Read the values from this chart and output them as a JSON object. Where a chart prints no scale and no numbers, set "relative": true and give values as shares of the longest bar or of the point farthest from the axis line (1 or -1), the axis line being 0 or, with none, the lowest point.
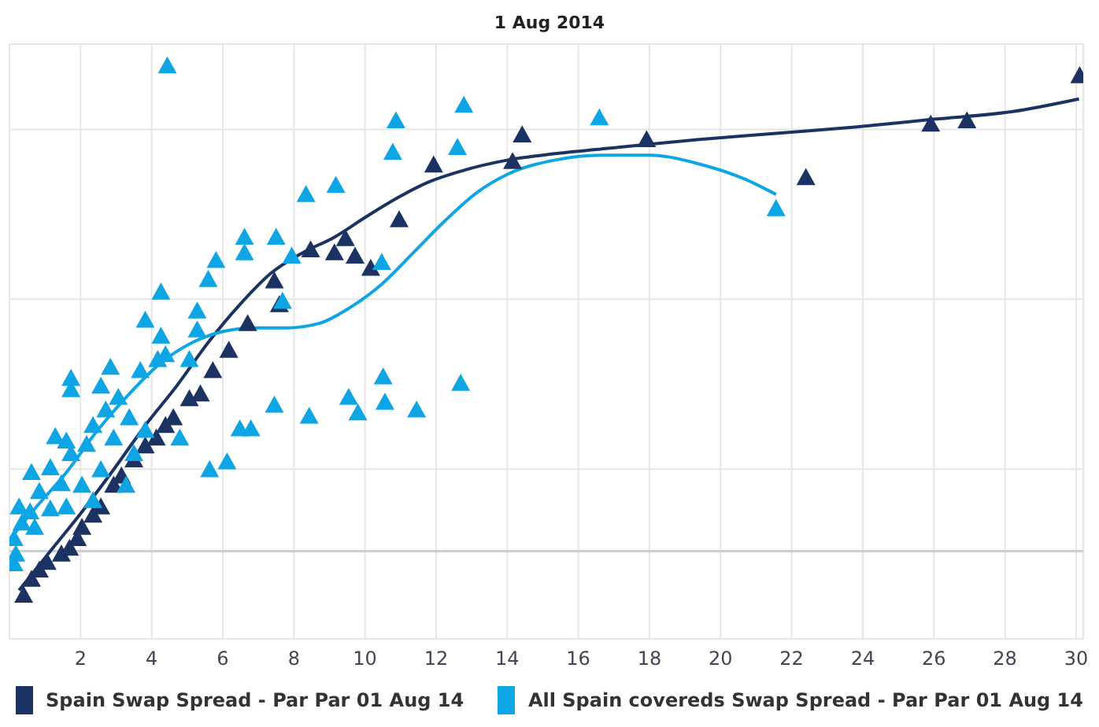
{
  "chart_data": {
    "type": "scatter",
    "title": "1 Aug 2014",
    "relative": true,
    "marker": "triangle",
    "grid": true,
    "legend": "bottom",
    "xlim": [
      0,
      30.2
    ],
    "xticks": [
      2,
      4,
      6,
      8,
      10,
      12,
      14,
      16,
      18,
      20,
      22,
      24,
      26,
      28,
      30
    ],
    "series": [
      {
        "name": "Spain Swap Spread - Par Par 01 Aug 14",
        "color": "#1b3263",
        "x": [
          0.4,
          0.62,
          0.84,
          1.06,
          1.46,
          1.69,
          1.91,
          2.04,
          2.35,
          2.57,
          2.93,
          3.15,
          3.5,
          3.82,
          4.13,
          4.39,
          4.61,
          5.06,
          5.37,
          5.72,
          6.17,
          6.7,
          7.45,
          7.59,
          8.47,
          9.14,
          9.45,
          9.72,
          10.16,
          10.96,
          11.93,
          14.15,
          14.42,
          17.92,
          22.4,
          25.91,
          26.93,
          30.1
        ],
        "values": [
          -0.091,
          -0.058,
          -0.039,
          -0.023,
          -0.006,
          0.006,
          0.026,
          0.049,
          0.074,
          0.091,
          0.136,
          0.155,
          0.188,
          0.217,
          0.233,
          0.259,
          0.275,
          0.314,
          0.324,
          0.372,
          0.414,
          0.469,
          0.557,
          0.508,
          0.621,
          0.615,
          0.644,
          0.608,
          0.583,
          0.683,
          0.796,
          0.803,
          0.858,
          0.848,
          0.77,
          0.88,
          0.887,
          0.98
        ]
      },
      {
        "name": "All Spain covereds Swap Spread - Par Par 01 Aug 14",
        "color": "#0ea5e4",
        "x": [
          4.44,
          12.78,
          10.87,
          10.78,
          12.6,
          16.59,
          21.56,
          8.34,
          9.18,
          6.61,
          7.5,
          6.61,
          7.94,
          5.81,
          5.59,
          10.47,
          4.26,
          7.68,
          5.28,
          5.28,
          4.26,
          3.82,
          4.39,
          4.17,
          5.06,
          2.84,
          3.68,
          1.73,
          1.73,
          2.57,
          3.06,
          2.71,
          7.45,
          3.37,
          2.35,
          3.82,
          6.48,
          6.79,
          1.29,
          1.6,
          2.93,
          4.79,
          2.17,
          1.73,
          3.5,
          0.62,
          1.15,
          2.57,
          5.63,
          6.12,
          1.46,
          2.04,
          0.84,
          3.28,
          0.27,
          0.58,
          1.15,
          1.6,
          2.35,
          0.35,
          0.71,
          0.13,
          0.18,
          0.13,
          10.51,
          12.69,
          9.54,
          10.56,
          9.8,
          11.45,
          8.43
        ],
        "values": [
          1.0,
          0.919,
          0.887,
          0.822,
          0.832,
          0.893,
          0.706,
          0.735,
          0.754,
          0.647,
          0.647,
          0.615,
          0.608,
          0.599,
          0.56,
          0.595,
          0.534,
          0.515,
          0.495,
          0.456,
          0.443,
          0.476,
          0.405,
          0.395,
          0.395,
          0.379,
          0.372,
          0.356,
          0.333,
          0.34,
          0.317,
          0.291,
          0.301,
          0.275,
          0.259,
          0.249,
          0.252,
          0.252,
          0.236,
          0.227,
          0.233,
          0.233,
          0.22,
          0.201,
          0.201,
          0.162,
          0.172,
          0.168,
          0.168,
          0.184,
          0.139,
          0.136,
          0.123,
          0.136,
          0.091,
          0.081,
          0.087,
          0.091,
          0.104,
          0.058,
          0.049,
          0.026,
          -0.006,
          -0.026,
          0.359,
          0.346,
          0.317,
          0.307,
          0.285,
          0.291,
          0.278
        ]
      },
      {
        "type": "line",
        "color": "#1b3263",
        "marker": "none",
        "x": [
          0.27,
          1.15,
          2.04,
          2.93,
          3.82,
          4.7,
          5.59,
          6.48,
          7.36,
          8.25,
          9.14,
          10.03,
          10.91,
          11.8,
          12.69,
          14.02,
          15.35,
          17.12,
          19.34,
          21.56,
          23.78,
          25.99,
          28.22,
          30.08
        ],
        "values": [
          -0.081,
          0,
          0.081,
          0.168,
          0.259,
          0.34,
          0.43,
          0.508,
          0.573,
          0.615,
          0.647,
          0.689,
          0.728,
          0.761,
          0.783,
          0.806,
          0.819,
          0.832,
          0.848,
          0.861,
          0.874,
          0.89,
          0.906,
          0.932
        ]
      },
      {
        "type": "line",
        "color": "#0ea5e4",
        "marker": "none",
        "x": [
          0,
          0.71,
          1.6,
          2.48,
          3.37,
          4.26,
          5.15,
          6.03,
          6.92,
          7.81,
          8.7,
          9.58,
          10.47,
          11.36,
          12.24,
          13.13,
          14.02,
          15.35,
          16.68,
          18.01,
          19.34,
          20.67,
          21.56
        ],
        "values": [
          0.023,
          0.087,
          0.162,
          0.249,
          0.324,
          0.388,
          0.43,
          0.453,
          0.46,
          0.46,
          0.469,
          0.502,
          0.55,
          0.615,
          0.68,
          0.738,
          0.777,
          0.806,
          0.816,
          0.816,
          0.799,
          0.767,
          0.735
        ]
      }
    ]
  }
}
